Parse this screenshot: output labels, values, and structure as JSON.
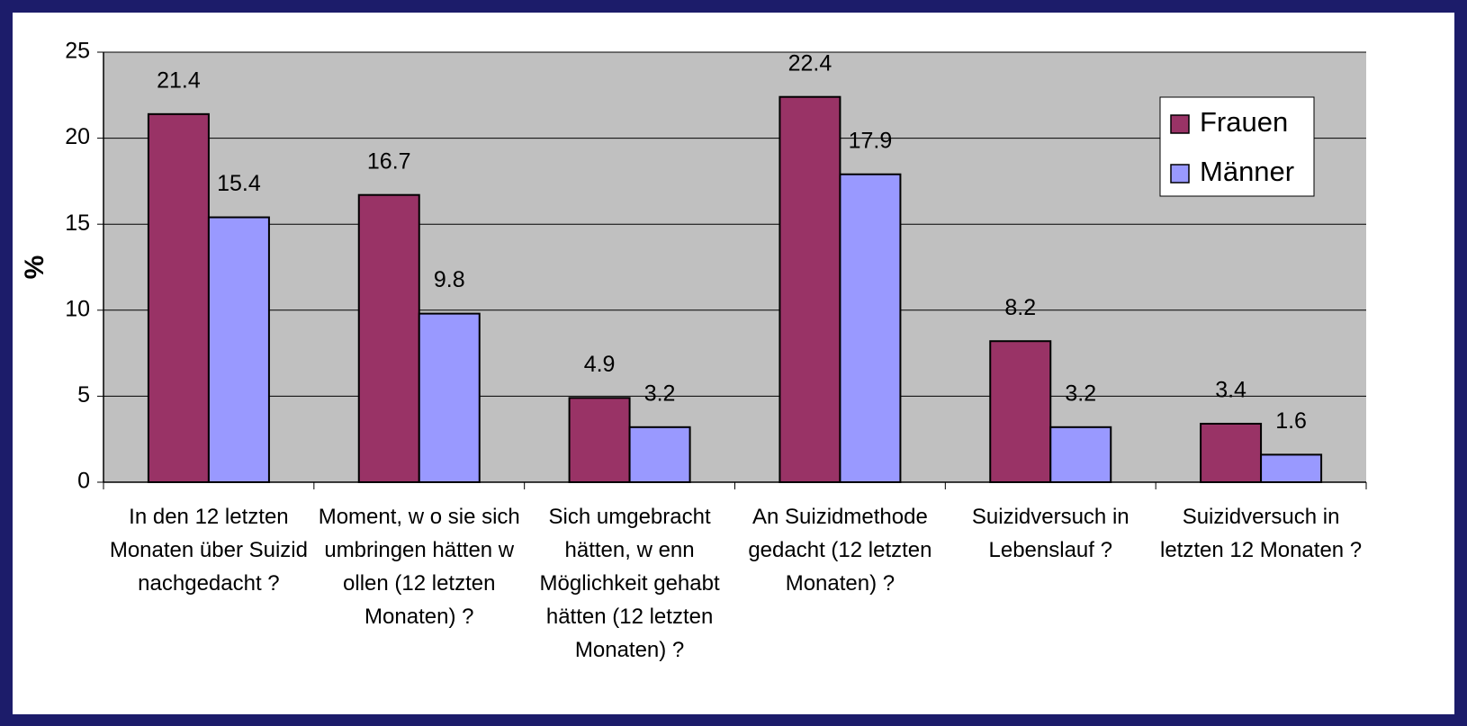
{
  "chart_data": {
    "type": "bar",
    "ylabel": "%",
    "categories": [
      "In den 12 letzten Monaten über Suizid nachgedacht ?",
      "Moment, w o sie sich umbringen hätten w ollen (12 letzten Monaten) ?",
      "Sich umgebracht hätten, w enn Möglichkeit gehabt hätten (12 letzten Monaten) ?",
      "An Suizidmethode gedacht (12 letzten Monaten) ?",
      "Suizidversuch in Lebenslauf ?",
      "Suizidversuch in letzten 12 Monaten ?"
    ],
    "series": [
      {
        "name": "Frauen",
        "color": "#993366",
        "values": [
          21.4,
          16.7,
          4.9,
          22.4,
          8.2,
          3.4
        ]
      },
      {
        "name": "Männer",
        "color": "#9999ff",
        "values": [
          15.4,
          9.8,
          3.2,
          17.9,
          3.2,
          1.6
        ]
      }
    ],
    "ylim": [
      0,
      25
    ],
    "yticks": [
      0,
      5,
      10,
      15,
      20,
      25
    ],
    "grid": true,
    "legend": "upper right"
  }
}
